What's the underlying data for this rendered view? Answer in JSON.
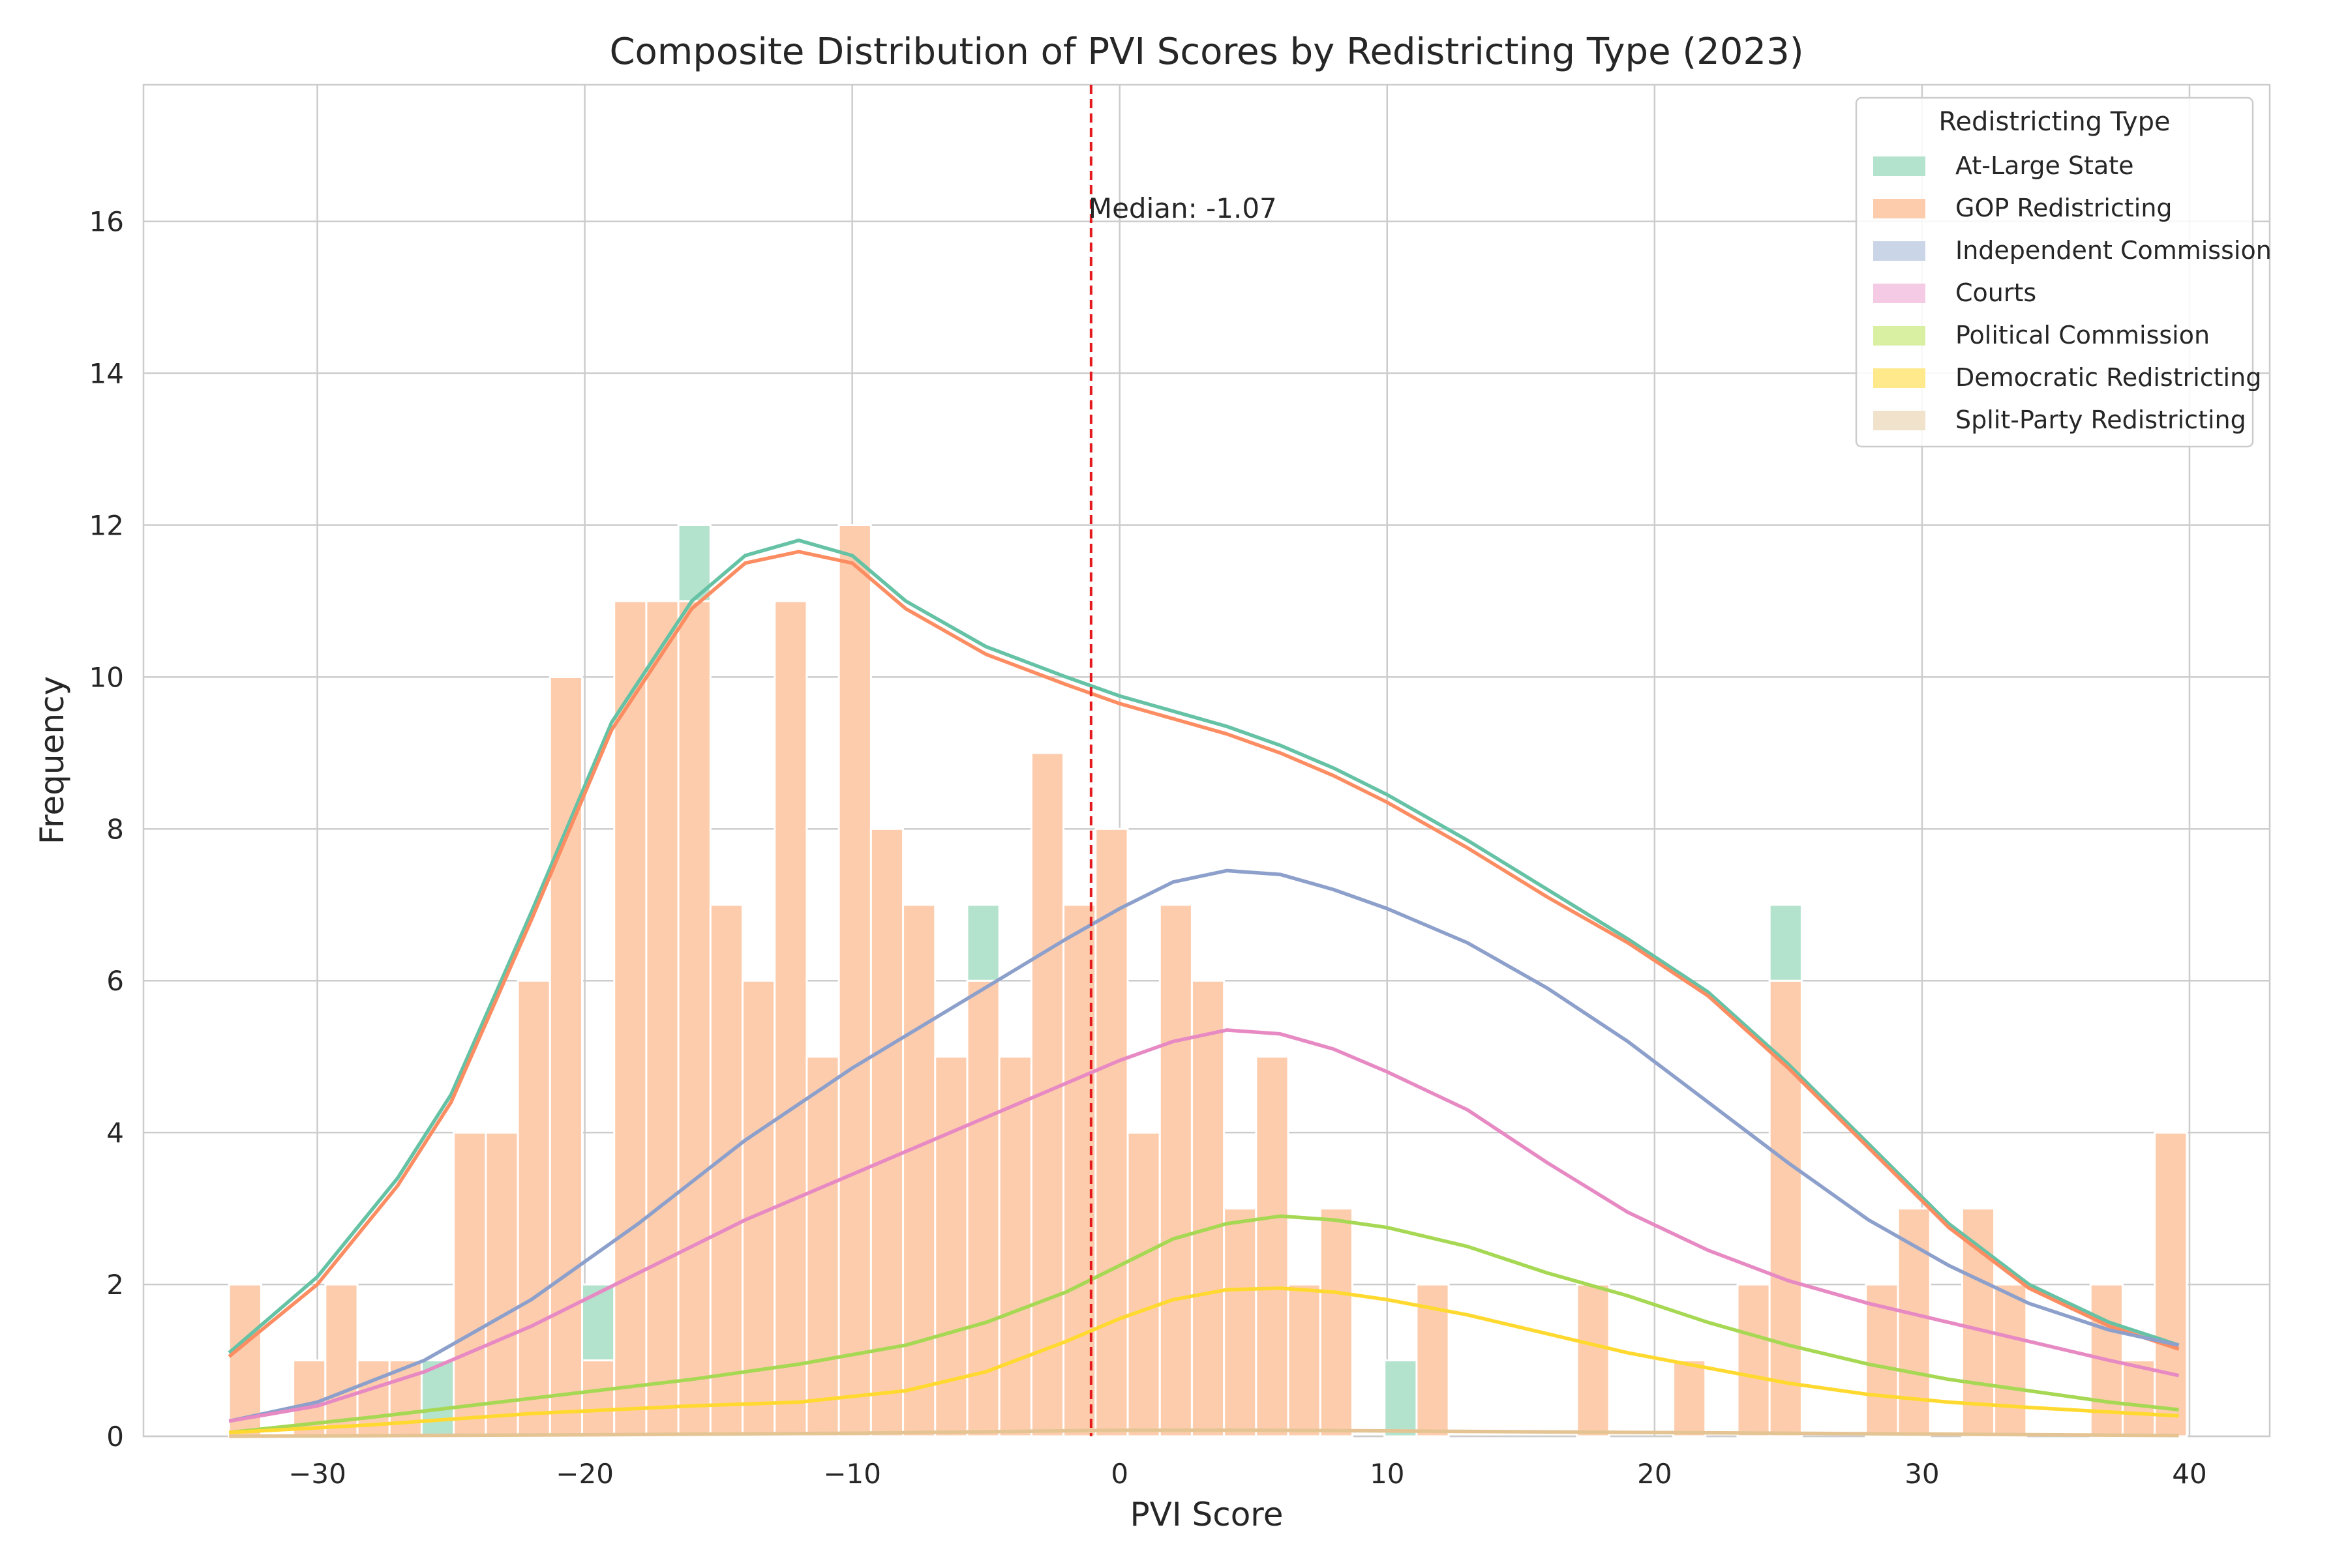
{
  "chart_data": {
    "type": "bar",
    "stacked": true,
    "title": "Composite Distribution of PVI Scores by Redistricting Type (2023)",
    "xlabel": "PVI Score",
    "ylabel": "Frequency",
    "xlim": [
      -36.5,
      43
    ],
    "ylim": [
      0,
      17.8
    ],
    "xticks": [
      -30,
      -20,
      -10,
      0,
      10,
      20,
      30,
      40
    ],
    "xtick_labels": [
      "−30",
      "−20",
      "−10",
      "0",
      "10",
      "20",
      "30",
      "40"
    ],
    "yticks": [
      0,
      2,
      4,
      6,
      8,
      10,
      12,
      14,
      16
    ],
    "grid": true,
    "legend_title": "Redistricting Type",
    "legend_position": "top-right",
    "bin_start": -33.3,
    "bin_width": 1.2,
    "bin_count": 61,
    "series": [
      {
        "name": "At-Large State",
        "color": "#b3e2cd",
        "kde_color": "#66c2a5",
        "values": [
          0,
          0,
          0,
          0,
          0,
          0,
          1,
          0,
          0,
          0,
          0,
          1,
          0,
          0,
          1,
          0,
          0,
          0,
          0,
          0,
          0,
          0,
          0,
          1,
          0,
          0,
          0,
          0,
          0,
          0,
          0,
          0,
          0,
          0,
          0,
          0,
          1,
          0,
          0,
          0,
          0,
          0,
          0,
          0,
          0,
          0,
          0,
          0,
          1,
          0,
          0,
          0,
          0,
          0,
          0,
          0,
          0,
          0,
          0,
          0,
          0
        ]
      },
      {
        "name": "GOP Redistricting",
        "color": "#fdccac",
        "kde_color": "#fc8d62",
        "values": [
          2,
          0,
          1,
          2,
          1,
          1,
          0,
          4,
          4,
          6,
          10,
          1,
          11,
          11,
          11,
          7,
          6,
          11,
          5,
          12,
          8,
          7,
          5,
          6,
          5,
          9,
          7,
          8,
          4,
          7,
          6,
          3,
          5,
          2,
          3,
          0,
          0,
          2,
          0,
          0,
          0,
          0,
          2,
          0,
          0,
          1,
          0,
          2,
          6,
          0,
          0,
          2,
          3,
          0,
          3,
          2,
          0,
          0,
          2,
          1,
          4
        ]
      },
      {
        "name": "Independent Commission",
        "color": "#cbd5e8",
        "kde_color": "#8da0cb",
        "values": [
          0,
          0,
          0,
          0,
          0,
          0,
          0,
          0,
          0,
          0,
          0,
          0,
          0,
          0,
          0,
          0,
          0,
          0,
          0,
          0,
          0,
          0,
          0,
          0,
          0,
          0,
          0,
          0,
          0,
          0,
          0,
          0,
          0,
          0,
          0,
          0,
          0,
          0,
          0,
          0,
          0,
          0,
          0,
          0,
          0,
          0,
          0,
          0,
          0,
          0,
          0,
          0,
          0,
          0,
          0,
          0,
          0,
          0,
          0,
          0,
          0
        ]
      },
      {
        "name": "Courts",
        "color": "#f4cae4",
        "kde_color": "#e78ac3",
        "values": [
          0,
          0,
          0,
          0,
          0,
          0,
          0,
          0,
          0,
          0,
          0,
          0,
          0,
          0,
          0,
          0,
          0,
          0,
          0,
          0,
          0,
          0,
          0,
          0,
          0,
          0,
          0,
          0,
          0,
          0,
          0,
          0,
          0,
          0,
          0,
          0,
          0,
          0,
          0,
          0,
          0,
          0,
          0,
          0,
          0,
          0,
          0,
          0,
          0,
          0,
          0,
          0,
          0,
          0,
          0,
          0,
          0,
          0,
          0,
          0,
          0
        ]
      },
      {
        "name": "Political Commission",
        "color": "#d9f0a3",
        "kde_color": "#a6d854",
        "values": [
          0,
          0,
          0,
          0,
          0,
          0,
          0,
          0,
          0,
          0,
          0,
          0,
          0,
          0,
          0,
          0,
          0,
          0,
          0,
          0,
          0,
          0,
          0,
          0,
          0,
          0,
          0,
          0,
          0,
          0,
          0,
          0,
          0,
          0,
          0,
          0,
          0,
          0,
          0,
          0,
          0,
          0,
          0,
          0,
          0,
          0,
          0,
          0,
          0,
          0,
          0,
          0,
          0,
          0,
          0,
          0,
          0,
          0,
          0,
          0,
          0
        ]
      },
      {
        "name": "Democratic Redistricting",
        "color": "#ffe98a",
        "kde_color": "#ffd92f",
        "values": [
          0,
          0,
          0,
          0,
          0,
          0,
          0,
          0,
          0,
          0,
          0,
          0,
          0,
          0,
          0,
          0,
          0,
          0,
          0,
          0,
          0,
          0,
          0,
          0,
          0,
          0,
          0,
          0,
          0,
          0,
          0,
          0,
          0,
          0,
          0,
          0,
          0,
          0,
          0,
          0,
          0,
          0,
          0,
          0,
          0,
          0,
          0,
          0,
          0,
          0,
          0,
          0,
          0,
          0,
          0,
          0,
          0,
          0,
          0,
          0,
          0
        ]
      },
      {
        "name": "Split-Party Redistricting",
        "color": "#f1e2cc",
        "kde_color": "#e5c494",
        "values": [
          0,
          0,
          0,
          0,
          0,
          0,
          0,
          0,
          0,
          0,
          0,
          0,
          0,
          0,
          0,
          0,
          0,
          0,
          0,
          0,
          0,
          0,
          0,
          0,
          0,
          0,
          0,
          0,
          0,
          0,
          0,
          0,
          0,
          0,
          0,
          0,
          0,
          0,
          0,
          0,
          0,
          0,
          0,
          0,
          0,
          0,
          0,
          0,
          0,
          0,
          0,
          0,
          0,
          0,
          0,
          0,
          0,
          0,
          0,
          0,
          0
        ]
      }
    ],
    "kde_curves": [
      {
        "name": "At-Large State",
        "x": [
          -33.3,
          -30,
          -27,
          -25,
          -22,
          -19,
          -16,
          -14,
          -12,
          -10,
          -8,
          -5,
          -2,
          0,
          2,
          4,
          6,
          8,
          10,
          13,
          16,
          19,
          22,
          25,
          28,
          31,
          34,
          37,
          39.6
        ],
        "y": [
          1.1,
          2.1,
          3.4,
          4.5,
          6.9,
          9.4,
          11.0,
          11.6,
          11.8,
          11.6,
          11.0,
          10.4,
          10.0,
          9.75,
          9.55,
          9.35,
          9.1,
          8.8,
          8.45,
          7.85,
          7.2,
          6.55,
          5.85,
          4.9,
          3.85,
          2.8,
          2.0,
          1.5,
          1.2
        ]
      },
      {
        "name": "GOP Redistricting",
        "x": [
          -33.3,
          -30,
          -27,
          -25,
          -22,
          -19,
          -16,
          -14,
          -12,
          -10,
          -8,
          -5,
          -2,
          0,
          2,
          4,
          6,
          8,
          10,
          13,
          16,
          19,
          22,
          25,
          28,
          31,
          34,
          37,
          39.6
        ],
        "y": [
          1.05,
          2.0,
          3.3,
          4.4,
          6.8,
          9.3,
          10.9,
          11.5,
          11.65,
          11.5,
          10.9,
          10.3,
          9.9,
          9.65,
          9.45,
          9.25,
          9.0,
          8.7,
          8.35,
          7.75,
          7.1,
          6.5,
          5.8,
          4.85,
          3.8,
          2.75,
          1.95,
          1.45,
          1.15
        ]
      },
      {
        "name": "Independent Commission",
        "x": [
          -33.3,
          -30,
          -26,
          -22,
          -18,
          -14,
          -10,
          -6,
          -2,
          0,
          2,
          4,
          6,
          8,
          10,
          13,
          16,
          19,
          22,
          25,
          28,
          31,
          34,
          37,
          39.6
        ],
        "y": [
          0.2,
          0.45,
          1.0,
          1.8,
          2.8,
          3.9,
          4.85,
          5.7,
          6.55,
          6.95,
          7.3,
          7.45,
          7.4,
          7.2,
          6.95,
          6.5,
          5.9,
          5.2,
          4.4,
          3.6,
          2.85,
          2.25,
          1.75,
          1.4,
          1.2
        ]
      },
      {
        "name": "Courts",
        "x": [
          -33.3,
          -30,
          -26,
          -22,
          -18,
          -14,
          -10,
          -6,
          -2,
          0,
          2,
          4,
          6,
          8,
          10,
          13,
          16,
          19,
          22,
          25,
          28,
          31,
          34,
          37,
          39.6
        ],
        "y": [
          0.2,
          0.4,
          0.85,
          1.45,
          2.15,
          2.85,
          3.45,
          4.05,
          4.65,
          4.95,
          5.2,
          5.35,
          5.3,
          5.1,
          4.8,
          4.3,
          3.6,
          2.95,
          2.45,
          2.05,
          1.75,
          1.5,
          1.25,
          1.0,
          0.8
        ]
      },
      {
        "name": "Political Commission",
        "x": [
          -33.3,
          -28,
          -22,
          -16,
          -12,
          -8,
          -5,
          -2,
          0,
          2,
          4,
          6,
          8,
          10,
          13,
          16,
          19,
          22,
          25,
          28,
          31,
          34,
          37,
          39.6
        ],
        "y": [
          0.05,
          0.25,
          0.5,
          0.75,
          0.95,
          1.2,
          1.5,
          1.9,
          2.25,
          2.6,
          2.8,
          2.9,
          2.85,
          2.75,
          2.5,
          2.15,
          1.85,
          1.5,
          1.2,
          0.95,
          0.75,
          0.6,
          0.45,
          0.35
        ]
      },
      {
        "name": "Democratic Redistricting",
        "x": [
          -33.3,
          -28,
          -22,
          -16,
          -12,
          -8,
          -5,
          -2,
          0,
          2,
          4,
          6,
          8,
          10,
          13,
          16,
          19,
          22,
          25,
          28,
          31,
          34,
          37,
          39.6
        ],
        "y": [
          0.05,
          0.15,
          0.3,
          0.4,
          0.45,
          0.6,
          0.85,
          1.25,
          1.55,
          1.8,
          1.93,
          1.95,
          1.9,
          1.8,
          1.6,
          1.35,
          1.1,
          0.9,
          0.7,
          0.55,
          0.45,
          0.38,
          0.32,
          0.27
        ]
      },
      {
        "name": "Split-Party Redistricting",
        "x": [
          -33.3,
          -20,
          -10,
          -5,
          0,
          5,
          10,
          20,
          30,
          39.6
        ],
        "y": [
          0.0,
          0.02,
          0.04,
          0.06,
          0.08,
          0.08,
          0.07,
          0.05,
          0.03,
          0.01
        ]
      }
    ],
    "median_value": -1.07,
    "median_label": "Median: -1.07",
    "median_line_color": "#e41a1c"
  }
}
